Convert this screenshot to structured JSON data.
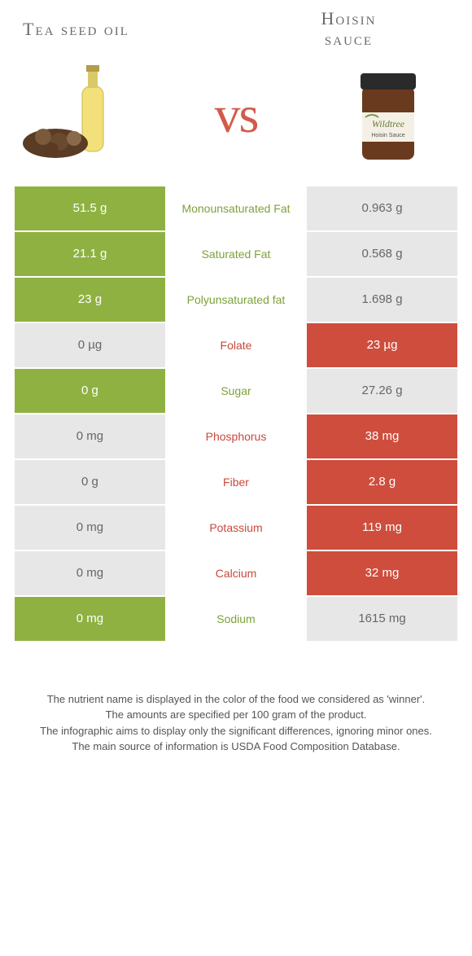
{
  "header": {
    "left_title": "Tea seed oil",
    "right_title_line1": "Hoisin",
    "right_title_line2": "sauce",
    "vs_text": "vs"
  },
  "colors": {
    "green": "#8fb142",
    "red": "#ce4d3c",
    "grey": "#e7e7e7",
    "green_text": "#7ea13a",
    "red_text": "#c9483a"
  },
  "rows": [
    {
      "left": "51.5 g",
      "label": "Monounsaturated Fat",
      "right": "0.963 g",
      "winner": "left"
    },
    {
      "left": "21.1 g",
      "label": "Saturated Fat",
      "right": "0.568 g",
      "winner": "left"
    },
    {
      "left": "23 g",
      "label": "Polyunsaturated fat",
      "right": "1.698 g",
      "winner": "left"
    },
    {
      "left": "0 µg",
      "label": "Folate",
      "right": "23 µg",
      "winner": "right"
    },
    {
      "left": "0 g",
      "label": "Sugar",
      "right": "27.26 g",
      "winner": "left"
    },
    {
      "left": "0 mg",
      "label": "Phosphorus",
      "right": "38 mg",
      "winner": "right"
    },
    {
      "left": "0 g",
      "label": "Fiber",
      "right": "2.8 g",
      "winner": "right"
    },
    {
      "left": "0 mg",
      "label": "Potassium",
      "right": "119 mg",
      "winner": "right"
    },
    {
      "left": "0 mg",
      "label": "Calcium",
      "right": "32 mg",
      "winner": "right"
    },
    {
      "left": "0 mg",
      "label": "Sodium",
      "right": "1615 mg",
      "winner": "left"
    }
  ],
  "footer": {
    "line1": "The nutrient name is displayed in the color of the food we considered as 'winner'.",
    "line2": "The amounts are specified per 100 gram of the product.",
    "line3": "The infographic aims to display only the significant differences, ignoring minor ones.",
    "line4": "The main source of information is USDA Food Composition Database."
  }
}
